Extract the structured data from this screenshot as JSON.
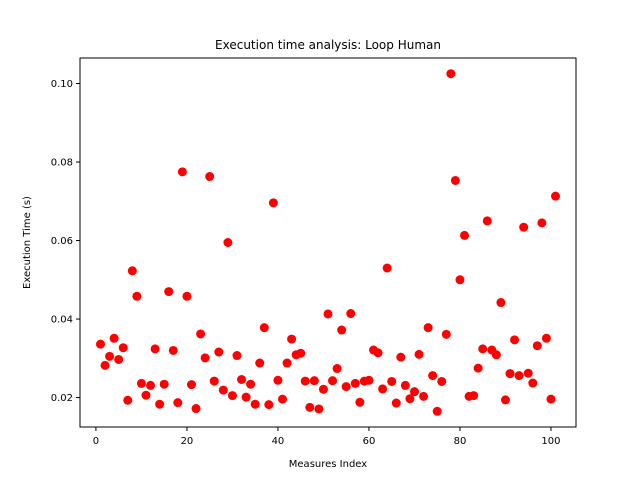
{
  "chart_data": {
    "type": "scatter",
    "title": "Execution time analysis: Loop Human",
    "xlabel": "Measures Index",
    "ylabel": "Execution Time (s)",
    "xlim": [
      -3.5,
      105.5
    ],
    "ylim": [
      0.0125,
      0.1065
    ],
    "xticks": [
      0,
      20,
      40,
      60,
      80,
      100
    ],
    "xtick_labels": [
      "0",
      "20",
      "40",
      "60",
      "80",
      "100"
    ],
    "yticks": [
      0.02,
      0.04,
      0.06,
      0.08,
      0.1
    ],
    "ytick_labels": [
      "0.02",
      "0.04",
      "0.06",
      "0.08",
      "0.10"
    ],
    "grid": false,
    "series": [
      {
        "color": "#ff0000",
        "marker": "circle",
        "x": [
          1,
          2,
          3,
          4,
          5,
          6,
          7,
          8,
          9,
          10,
          11,
          12,
          13,
          14,
          15,
          16,
          17,
          18,
          19,
          20,
          21,
          22,
          23,
          24,
          25,
          26,
          27,
          28,
          29,
          30,
          31,
          32,
          33,
          34,
          35,
          36,
          37,
          38,
          39,
          40,
          41,
          42,
          43,
          44,
          45,
          46,
          47,
          48,
          49,
          50,
          51,
          52,
          53,
          54,
          55,
          56,
          57,
          58,
          59,
          60,
          61,
          62,
          63,
          64,
          65,
          66,
          67,
          68,
          69,
          70,
          71,
          72,
          73,
          74,
          75,
          76,
          77,
          78,
          79,
          80,
          81,
          82,
          83,
          84,
          85,
          86,
          87,
          88,
          89,
          90,
          91,
          92,
          93,
          94,
          95,
          96,
          97,
          98,
          99,
          100,
          101
        ],
        "y": [
          0.0336,
          0.0282,
          0.0305,
          0.0351,
          0.0297,
          0.0327,
          0.0193,
          0.0523,
          0.0458,
          0.0236,
          0.0206,
          0.0231,
          0.0324,
          0.0183,
          0.0234,
          0.047,
          0.032,
          0.0187,
          0.0775,
          0.0458,
          0.0233,
          0.0172,
          0.0362,
          0.0301,
          0.0763,
          0.0242,
          0.0316,
          0.0219,
          0.0595,
          0.0205,
          0.0307,
          0.0246,
          0.0201,
          0.0234,
          0.0183,
          0.0288,
          0.0378,
          0.0182,
          0.0696,
          0.0244,
          0.0196,
          0.0288,
          0.0349,
          0.0309,
          0.0313,
          0.0242,
          0.0175,
          0.0243,
          0.0171,
          0.0221,
          0.0413,
          0.0243,
          0.0274,
          0.0372,
          0.0228,
          0.0414,
          0.0236,
          0.0188,
          0.0242,
          0.0244,
          0.0321,
          0.0314,
          0.0222,
          0.053,
          0.0241,
          0.0186,
          0.0303,
          0.0231,
          0.0197,
          0.0215,
          0.031,
          0.0203,
          0.0378,
          0.0256,
          0.0165,
          0.0241,
          0.0361,
          0.1025,
          0.0753,
          0.05,
          0.0613,
          0.0203,
          0.0205,
          0.0275,
          0.0324,
          0.065,
          0.0321,
          0.0309,
          0.0442,
          0.0194,
          0.0261,
          0.0347,
          0.0256,
          0.0634,
          0.0262,
          0.0237,
          0.0332,
          0.0645,
          0.0351,
          0.0196,
          0.0713
        ]
      }
    ]
  }
}
